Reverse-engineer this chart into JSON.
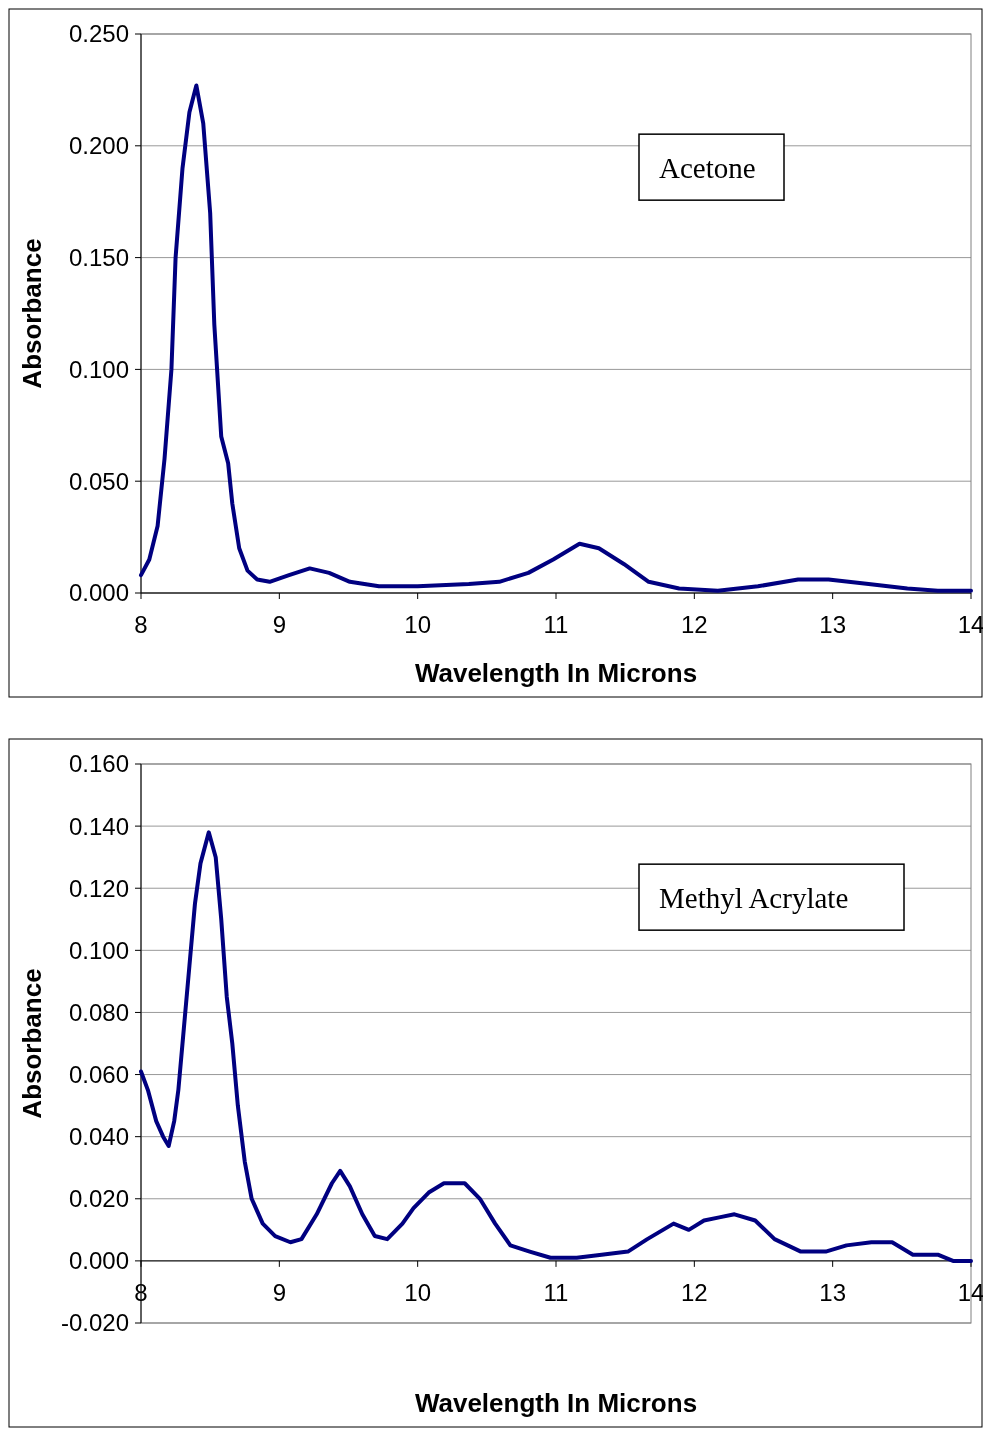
{
  "chart_data": [
    {
      "type": "line",
      "xlabel": "Wavelength In Microns",
      "ylabel": "Absorbance",
      "annotations": [
        "Acetone"
      ],
      "grid": "y",
      "xlim": [
        8,
        14
      ],
      "xticks": [
        8,
        9,
        10,
        11,
        12,
        13,
        14
      ],
      "ylim": [
        0,
        0.25
      ],
      "yticks": [
        {
          "value": 0,
          "label": "0.000"
        },
        {
          "value": 0.05,
          "label": "0.050"
        },
        {
          "value": 0.1,
          "label": "0.100"
        },
        {
          "value": 0.15,
          "label": "0.150"
        },
        {
          "value": 0.2,
          "label": "0.200"
        },
        {
          "value": 0.25,
          "label": "0.250"
        }
      ],
      "series": [
        {
          "color": "#000080",
          "x": [
            8,
            8.06,
            8.12,
            8.17,
            8.22,
            8.25,
            8.3,
            8.35,
            8.4,
            8.45,
            8.5,
            8.53,
            8.58,
            8.63,
            8.66,
            8.71,
            8.77,
            8.84,
            8.93,
            9.07,
            9.22,
            9.36,
            9.51,
            9.72,
            10,
            10.37,
            10.59,
            10.8,
            10.98,
            11.17,
            11.31,
            11.49,
            11.67,
            11.89,
            12.17,
            12.46,
            12.75,
            12.97,
            13.26,
            13.54,
            13.76,
            14
          ],
          "values": [
            0.008,
            0.015,
            0.03,
            0.06,
            0.1,
            0.15,
            0.19,
            0.215,
            0.227,
            0.21,
            0.17,
            0.12,
            0.07,
            0.058,
            0.04,
            0.02,
            0.01,
            0.006,
            0.005,
            0.008,
            0.011,
            0.009,
            0.005,
            0.003,
            0.003,
            0.004,
            0.005,
            0.009,
            0.015,
            0.022,
            0.02,
            0.013,
            0.005,
            0.002,
            0.001,
            0.003,
            0.006,
            0.006,
            0.004,
            0.002,
            0.001,
            0.001
          ]
        }
      ]
    },
    {
      "type": "line",
      "xlabel": "Wavelength In Microns",
      "ylabel": "Absorbance",
      "annotations": [
        "Methyl Acrylate"
      ],
      "grid": "y",
      "xlim": [
        8,
        14
      ],
      "xticks": [
        8,
        9,
        10,
        11,
        12,
        13,
        14
      ],
      "ylim": [
        -0.02,
        0.16
      ],
      "yticks": [
        {
          "value": -0.02,
          "label": "-0.020"
        },
        {
          "value": 0,
          "label": "0.000"
        },
        {
          "value": 0.02,
          "label": "0.020"
        },
        {
          "value": 0.04,
          "label": "0.040"
        },
        {
          "value": 0.06,
          "label": "0.060"
        },
        {
          "value": 0.08,
          "label": "0.080"
        },
        {
          "value": 0.1,
          "label": "0.100"
        },
        {
          "value": 0.12,
          "label": "0.120"
        },
        {
          "value": 0.14,
          "label": "0.140"
        },
        {
          "value": 0.16,
          "label": "0.160"
        }
      ],
      "series": [
        {
          "color": "#000080",
          "x": [
            8,
            8.05,
            8.11,
            8.16,
            8.2,
            8.24,
            8.27,
            8.31,
            8.35,
            8.39,
            8.43,
            8.49,
            8.54,
            8.58,
            8.62,
            8.66,
            8.7,
            8.75,
            8.8,
            8.88,
            8.97,
            9.08,
            9.16,
            9.27,
            9.38,
            9.44,
            9.51,
            9.6,
            9.69,
            9.78,
            9.89,
            9.97,
            10.08,
            10.19,
            10.34,
            10.45,
            10.56,
            10.67,
            10.81,
            10.96,
            11.15,
            11.33,
            11.52,
            11.66,
            11.85,
            11.96,
            12.07,
            12.18,
            12.29,
            12.44,
            12.58,
            12.77,
            12.95,
            13.1,
            13.28,
            13.43,
            13.58,
            13.76,
            13.87,
            14
          ],
          "values": [
            0.061,
            0.055,
            0.045,
            0.04,
            0.037,
            0.045,
            0.055,
            0.075,
            0.095,
            0.115,
            0.128,
            0.138,
            0.13,
            0.11,
            0.085,
            0.07,
            0.05,
            0.032,
            0.02,
            0.012,
            0.008,
            0.006,
            0.007,
            0.015,
            0.025,
            0.029,
            0.024,
            0.015,
            0.008,
            0.007,
            0.012,
            0.017,
            0.022,
            0.025,
            0.025,
            0.02,
            0.012,
            0.005,
            0.003,
            0.001,
            0.001,
            0.002,
            0.003,
            0.007,
            0.012,
            0.01,
            0.013,
            0.014,
            0.015,
            0.013,
            0.007,
            0.003,
            0.003,
            0.005,
            0.006,
            0.006,
            0.002,
            0.002,
            0,
            0
          ]
        }
      ]
    }
  ]
}
